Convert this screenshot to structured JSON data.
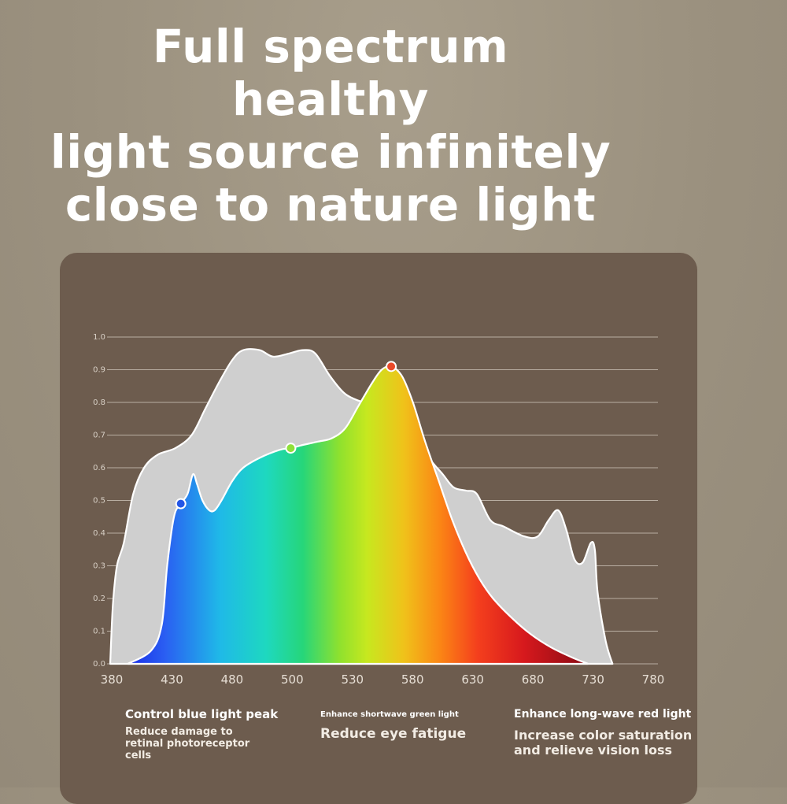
{
  "headline": {
    "line1": "Full spectrum healthy",
    "line2": "light source infinitely",
    "line3": "close to nature light"
  },
  "colors": {
    "background": "#9b917f",
    "panel": "#6d5c4e",
    "natural_area": "#cfcfcf",
    "gridline": "#b9aea2",
    "text": "#ffffff"
  },
  "chart_data": {
    "type": "area",
    "title": "",
    "xlabel": "",
    "ylabel": "",
    "xlim": [
      380,
      780
    ],
    "ylim": [
      0.0,
      1.0
    ],
    "x_ticks": [
      "380",
      "430",
      "480",
      "500",
      "530",
      "580",
      "630",
      "680",
      "730",
      "780"
    ],
    "y_ticks": [
      "0.0",
      "0.1",
      "0.2",
      "0.3",
      "0.4",
      "0.5",
      "0.6",
      "0.7",
      "0.8",
      "0.9",
      "1.0"
    ],
    "grid": true,
    "series": [
      {
        "fill": "#cfcfcf",
        "points": [
          [
            380,
            0.0
          ],
          [
            382,
            0.18
          ],
          [
            385,
            0.3
          ],
          [
            390,
            0.37
          ],
          [
            397,
            0.52
          ],
          [
            405,
            0.6
          ],
          [
            415,
            0.64
          ],
          [
            428,
            0.66
          ],
          [
            440,
            0.7
          ],
          [
            450,
            0.78
          ],
          [
            460,
            0.86
          ],
          [
            470,
            0.93
          ],
          [
            478,
            0.96
          ],
          [
            490,
            0.96
          ],
          [
            500,
            0.94
          ],
          [
            512,
            0.95
          ],
          [
            522,
            0.96
          ],
          [
            531,
            0.95
          ],
          [
            542,
            0.88
          ],
          [
            552,
            0.83
          ],
          [
            560,
            0.81
          ],
          [
            568,
            0.8
          ],
          [
            578,
            0.8
          ],
          [
            592,
            0.78
          ],
          [
            605,
            0.71
          ],
          [
            615,
            0.63
          ],
          [
            625,
            0.58
          ],
          [
            633,
            0.54
          ],
          [
            642,
            0.53
          ],
          [
            650,
            0.52
          ],
          [
            660,
            0.44
          ],
          [
            670,
            0.42
          ],
          [
            685,
            0.39
          ],
          [
            695,
            0.39
          ],
          [
            703,
            0.44
          ],
          [
            710,
            0.47
          ],
          [
            716,
            0.41
          ],
          [
            722,
            0.32
          ],
          [
            728,
            0.31
          ],
          [
            734,
            0.37
          ],
          [
            737,
            0.35
          ],
          [
            739,
            0.22
          ],
          [
            745,
            0.07
          ],
          [
            750,
            0.0
          ]
        ]
      },
      {
        "colored": true,
        "points": [
          [
            393,
            0.0
          ],
          [
            410,
            0.04
          ],
          [
            418,
            0.12
          ],
          [
            422,
            0.3
          ],
          [
            427,
            0.45
          ],
          [
            432,
            0.49
          ],
          [
            437,
            0.52
          ],
          [
            441,
            0.58
          ],
          [
            444,
            0.55
          ],
          [
            448,
            0.5
          ],
          [
            453,
            0.47
          ],
          [
            457,
            0.47
          ],
          [
            462,
            0.5
          ],
          [
            470,
            0.56
          ],
          [
            478,
            0.6
          ],
          [
            490,
            0.63
          ],
          [
            505,
            0.655
          ],
          [
            513,
            0.66
          ],
          [
            522,
            0.67
          ],
          [
            533,
            0.68
          ],
          [
            543,
            0.69
          ],
          [
            553,
            0.72
          ],
          [
            563,
            0.79
          ],
          [
            573,
            0.86
          ],
          [
            580,
            0.9
          ],
          [
            587,
            0.91
          ],
          [
            595,
            0.88
          ],
          [
            603,
            0.8
          ],
          [
            612,
            0.68
          ],
          [
            622,
            0.56
          ],
          [
            632,
            0.44
          ],
          [
            642,
            0.34
          ],
          [
            652,
            0.26
          ],
          [
            662,
            0.2
          ],
          [
            676,
            0.14
          ],
          [
            690,
            0.09
          ],
          [
            705,
            0.05
          ],
          [
            720,
            0.02
          ],
          [
            732,
            0.0
          ]
        ]
      }
    ],
    "markers": [
      {
        "x": 432,
        "y": 0.49,
        "color": "#2456e6"
      },
      {
        "x": 513,
        "y": 0.66,
        "color": "#8fe03a"
      },
      {
        "x": 587,
        "y": 0.91,
        "color": "#ea4a2a"
      }
    ]
  },
  "captions": {
    "blue": {
      "heading": "Control blue light peak",
      "detail": "Reduce damage to retinal photoreceptor cells"
    },
    "green": {
      "heading": "Enhance shortwave green light",
      "detail": "Reduce eye fatigue"
    },
    "red": {
      "heading": "Enhance long-wave red light",
      "detail": "Increase color saturation and relieve vision loss"
    }
  }
}
